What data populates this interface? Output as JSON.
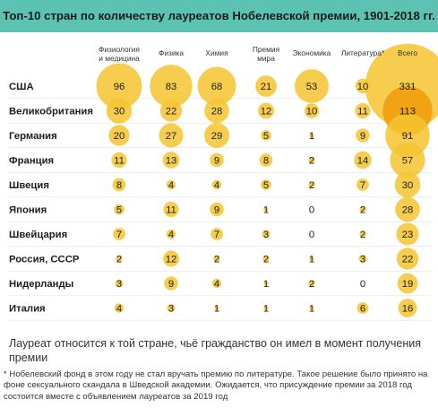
{
  "title": "Топ-10 стран по количеству лауреатов Нобелевской премии, 1901-2018 гг.",
  "note": "Лауреат относится к той стране, чьё гражданство он имел в момент получения премии",
  "footnote": "* Нобелевский фонд в этом году не стал вручать премию по литературе. Такое решение было принято на фоне сексуального скандала в Шведской академии. Ожидается, что присуждение премии за 2018 год состоится вместе с объявлением лауреатов за 2019 год",
  "colors": {
    "header": "#5cc3b3",
    "bubble": "#f4c430",
    "bubble_total_highlight": "#f0a010"
  },
  "chart_data": {
    "type": "bubble-table",
    "categories": [
      "Физиология и медицина",
      "Физика",
      "Химия",
      "Премия мира",
      "Экономика",
      "Литература*",
      "Всего"
    ],
    "header_lines": [
      [
        "Физиология",
        "и медицина"
      ],
      [
        "Физика"
      ],
      [
        "Химия"
      ],
      [
        "Премия",
        "мира"
      ],
      [
        "Экономика"
      ],
      [
        "Литература*"
      ],
      [
        "Всего"
      ]
    ],
    "rows": [
      {
        "country": "США",
        "values": [
          96,
          83,
          68,
          21,
          53,
          10,
          331
        ]
      },
      {
        "country": "Великобритания",
        "values": [
          30,
          22,
          28,
          12,
          10,
          11,
          113
        ]
      },
      {
        "country": "Германия",
        "values": [
          20,
          27,
          29,
          5,
          1,
          9,
          91
        ]
      },
      {
        "country": "Франция",
        "values": [
          11,
          13,
          9,
          8,
          2,
          14,
          57
        ]
      },
      {
        "country": "Швеция",
        "values": [
          8,
          4,
          4,
          5,
          2,
          7,
          30
        ]
      },
      {
        "country": "Япония",
        "values": [
          5,
          11,
          9,
          1,
          0,
          2,
          28
        ]
      },
      {
        "country": "Швейцария",
        "values": [
          7,
          4,
          7,
          3,
          0,
          2,
          23
        ]
      },
      {
        "country": "Россия, СССР",
        "values": [
          2,
          12,
          2,
          2,
          1,
          3,
          22
        ]
      },
      {
        "country": "Нидерланды",
        "values": [
          3,
          9,
          4,
          1,
          2,
          0,
          19
        ]
      },
      {
        "country": "Италия",
        "values": [
          4,
          3,
          1,
          1,
          1,
          6,
          16
        ]
      }
    ]
  }
}
